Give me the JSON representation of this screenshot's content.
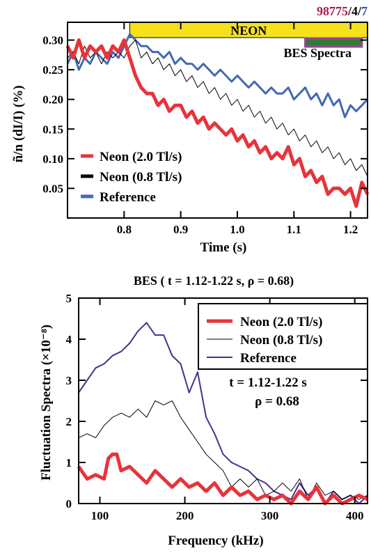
{
  "header": {
    "shot_id": "98775",
    "sep1": "/",
    "shot_part2": "4",
    "sep2": "/",
    "shot_part3": "7",
    "colors": {
      "shot_id": "#b5144b",
      "shot_part3": "#3a4bb3",
      "separator": "#000000"
    }
  },
  "chart_data": [
    {
      "type": "line",
      "title": "",
      "xlabel": "Time (s)",
      "ylabel": "ñ/n  (dI/I)  (%)",
      "xlim": [
        0.7,
        1.23
      ],
      "ylim": [
        0.0,
        0.33
      ],
      "x_ticks": [
        0.8,
        0.9,
        1.0,
        1.1,
        1.2
      ],
      "x_tick_labels": [
        "0.8",
        "0.9",
        "1.0",
        "1.1",
        "1.2"
      ],
      "y_ticks": [
        0.05,
        0.1,
        0.15,
        0.2,
        0.25,
        0.3
      ],
      "y_tick_labels": [
        "0.05",
        "0.10",
        "0.15",
        "0.20",
        "0.25",
        "0.30"
      ],
      "legend": {
        "placement": "lower-left",
        "labels": [
          "Neon (2.0 Tl/s)",
          "Neon (0.8 Tl/s)",
          "Reference"
        ]
      },
      "annotations": {
        "neon_bar": {
          "label": "NEON",
          "x_start": 0.81,
          "x_end": 1.23,
          "color": "#f5e11c"
        },
        "bes_window": {
          "label": "BES Spectra",
          "x_start": 1.12,
          "x_end": 1.22,
          "color": "#2e7d32",
          "border": "#a0429e"
        }
      },
      "series": [
        {
          "name": "Neon (2.0 Tl/s)",
          "color": "#e8333a",
          "line_width": 5,
          "x": [
            0.7,
            0.71,
            0.72,
            0.73,
            0.74,
            0.75,
            0.76,
            0.77,
            0.78,
            0.79,
            0.8,
            0.81,
            0.82,
            0.83,
            0.84,
            0.85,
            0.86,
            0.87,
            0.88,
            0.89,
            0.9,
            0.91,
            0.92,
            0.93,
            0.94,
            0.95,
            0.96,
            0.97,
            0.98,
            0.99,
            1.0,
            1.01,
            1.02,
            1.03,
            1.04,
            1.05,
            1.06,
            1.07,
            1.08,
            1.09,
            1.1,
            1.11,
            1.12,
            1.13,
            1.14,
            1.15,
            1.16,
            1.17,
            1.18,
            1.19,
            1.2,
            1.21,
            1.22,
            1.23
          ],
          "y": [
            0.29,
            0.27,
            0.3,
            0.27,
            0.29,
            0.28,
            0.29,
            0.27,
            0.29,
            0.28,
            0.3,
            0.27,
            0.24,
            0.22,
            0.21,
            0.21,
            0.19,
            0.2,
            0.18,
            0.19,
            0.19,
            0.17,
            0.18,
            0.16,
            0.17,
            0.15,
            0.16,
            0.15,
            0.14,
            0.15,
            0.13,
            0.14,
            0.12,
            0.13,
            0.11,
            0.12,
            0.1,
            0.11,
            0.1,
            0.12,
            0.09,
            0.1,
            0.07,
            0.08,
            0.06,
            0.07,
            0.04,
            0.05,
            0.05,
            0.04,
            0.05,
            0.02,
            0.06,
            0.04
          ]
        },
        {
          "name": "Neon (0.8 Tl/s)",
          "color": "#000000",
          "line_width": 1,
          "x": [
            0.7,
            0.71,
            0.72,
            0.73,
            0.74,
            0.75,
            0.76,
            0.77,
            0.78,
            0.79,
            0.8,
            0.81,
            0.82,
            0.83,
            0.84,
            0.85,
            0.86,
            0.87,
            0.88,
            0.89,
            0.9,
            0.91,
            0.92,
            0.93,
            0.94,
            0.95,
            0.96,
            0.97,
            0.98,
            0.99,
            1.0,
            1.01,
            1.02,
            1.03,
            1.04,
            1.05,
            1.06,
            1.07,
            1.08,
            1.09,
            1.1,
            1.11,
            1.12,
            1.13,
            1.14,
            1.15,
            1.16,
            1.17,
            1.18,
            1.19,
            1.2,
            1.21,
            1.22,
            1.23
          ],
          "y": [
            0.27,
            0.28,
            0.26,
            0.29,
            0.27,
            0.28,
            0.26,
            0.28,
            0.27,
            0.28,
            0.27,
            0.29,
            0.3,
            0.27,
            0.28,
            0.26,
            0.27,
            0.25,
            0.26,
            0.24,
            0.25,
            0.23,
            0.24,
            0.22,
            0.23,
            0.21,
            0.22,
            0.2,
            0.21,
            0.19,
            0.2,
            0.18,
            0.19,
            0.17,
            0.18,
            0.16,
            0.17,
            0.15,
            0.16,
            0.14,
            0.15,
            0.13,
            0.14,
            0.12,
            0.13,
            0.11,
            0.12,
            0.1,
            0.11,
            0.09,
            0.1,
            0.08,
            0.09,
            0.07
          ]
        },
        {
          "name": "Reference",
          "color": "#4467b6",
          "line_width": 3,
          "x": [
            0.7,
            0.71,
            0.72,
            0.73,
            0.74,
            0.75,
            0.76,
            0.77,
            0.78,
            0.79,
            0.8,
            0.81,
            0.82,
            0.83,
            0.84,
            0.85,
            0.86,
            0.87,
            0.88,
            0.89,
            0.9,
            0.91,
            0.92,
            0.93,
            0.94,
            0.95,
            0.96,
            0.97,
            0.98,
            0.99,
            1.0,
            1.01,
            1.02,
            1.03,
            1.04,
            1.05,
            1.06,
            1.07,
            1.08,
            1.09,
            1.1,
            1.11,
            1.12,
            1.13,
            1.14,
            1.15,
            1.16,
            1.17,
            1.18,
            1.19,
            1.2,
            1.21,
            1.22,
            1.23
          ],
          "y": [
            0.26,
            0.28,
            0.25,
            0.27,
            0.26,
            0.28,
            0.27,
            0.26,
            0.28,
            0.27,
            0.29,
            0.31,
            0.3,
            0.29,
            0.29,
            0.28,
            0.28,
            0.27,
            0.28,
            0.26,
            0.27,
            0.26,
            0.26,
            0.25,
            0.26,
            0.25,
            0.24,
            0.25,
            0.24,
            0.23,
            0.24,
            0.23,
            0.22,
            0.23,
            0.22,
            0.21,
            0.22,
            0.21,
            0.21,
            0.22,
            0.2,
            0.21,
            0.22,
            0.2,
            0.21,
            0.19,
            0.21,
            0.19,
            0.2,
            0.17,
            0.19,
            0.18,
            0.19,
            0.2
          ]
        }
      ]
    },
    {
      "type": "line",
      "title": "BES ( t = 1.12-1.22 s, ρ = 0.68)",
      "xlabel": "Frequency (kHz)",
      "ylabel": "Fluctuation Spectra (×10⁻⁸)",
      "xlim": [
        75,
        415
      ],
      "ylim": [
        0,
        5
      ],
      "x_ticks": [
        100,
        200,
        300,
        400
      ],
      "x_tick_labels": [
        "100",
        "200",
        "300",
        "400"
      ],
      "y_ticks": [
        0,
        1,
        2,
        3,
        4,
        5
      ],
      "y_tick_labels": [
        "0",
        "1",
        "2",
        "3",
        "4",
        "5"
      ],
      "legend": {
        "placement": "top-right",
        "labels": [
          "Neon (2.0 Tl/s)",
          "Neon (0.8 Tl/s)",
          "Reference"
        ]
      },
      "annotations": {
        "time_label": "t = 1.12-1.22 s",
        "rho_label": "ρ = 0.68"
      },
      "series": [
        {
          "name": "Neon (2.0 Tl/s)",
          "color": "#e8333a",
          "line_width": 5,
          "x": [
            75,
            85,
            95,
            105,
            110,
            115,
            120,
            125,
            135,
            145,
            155,
            165,
            175,
            185,
            195,
            205,
            215,
            225,
            235,
            245,
            255,
            265,
            275,
            285,
            295,
            305,
            315,
            325,
            335,
            345,
            355,
            365,
            375,
            385,
            395,
            405,
            415
          ],
          "y": [
            0.9,
            0.6,
            0.7,
            0.6,
            1.1,
            1.2,
            1.2,
            0.8,
            0.9,
            0.7,
            0.5,
            0.8,
            0.6,
            0.4,
            0.6,
            0.4,
            0.5,
            0.3,
            0.5,
            0.2,
            0.4,
            0.2,
            0.3,
            0.1,
            0.2,
            0.1,
            0.2,
            0.0,
            0.3,
            0.1,
            0.4,
            0.0,
            0.2,
            0.0,
            0.1,
            0.2,
            0.1
          ]
        },
        {
          "name": "Neon (0.8 Tl/s)",
          "color": "#000000",
          "line_width": 1,
          "x": [
            75,
            85,
            95,
            105,
            115,
            125,
            135,
            145,
            155,
            165,
            175,
            185,
            195,
            205,
            215,
            225,
            235,
            245,
            255,
            265,
            275,
            285,
            295,
            305,
            315,
            325,
            335,
            345,
            355,
            365,
            375,
            385,
            395,
            405,
            415
          ],
          "y": [
            1.6,
            1.7,
            1.6,
            1.9,
            2.1,
            2.2,
            2.1,
            2.3,
            2.1,
            2.5,
            2.4,
            2.5,
            2.1,
            1.8,
            1.5,
            1.2,
            1.0,
            0.8,
            0.4,
            0.6,
            0.4,
            0.6,
            0.2,
            0.3,
            0.5,
            0.3,
            0.6,
            0.1,
            0.5,
            0.2,
            0.3,
            0.1,
            0.2,
            0.1,
            0.2
          ]
        },
        {
          "name": "Reference",
          "color": "#4b2d8f",
          "line_width": 2,
          "x": [
            75,
            85,
            95,
            105,
            115,
            125,
            135,
            145,
            155,
            165,
            175,
            185,
            195,
            205,
            215,
            225,
            235,
            245,
            255,
            265,
            275,
            285,
            295,
            305,
            315,
            325,
            335,
            345,
            355,
            365,
            375,
            385,
            395,
            405,
            415
          ],
          "y": [
            2.7,
            3.0,
            3.3,
            3.4,
            3.6,
            3.7,
            3.9,
            4.2,
            4.4,
            4.1,
            4.1,
            3.6,
            3.4,
            2.7,
            3.2,
            2.1,
            1.7,
            1.2,
            1.0,
            0.9,
            0.8,
            0.6,
            0.5,
            0.3,
            0.2,
            0.1,
            0.5,
            0.2,
            0.4,
            0.0,
            0.3,
            0.1,
            0.2,
            0.0,
            0.2
          ]
        }
      ]
    }
  ]
}
